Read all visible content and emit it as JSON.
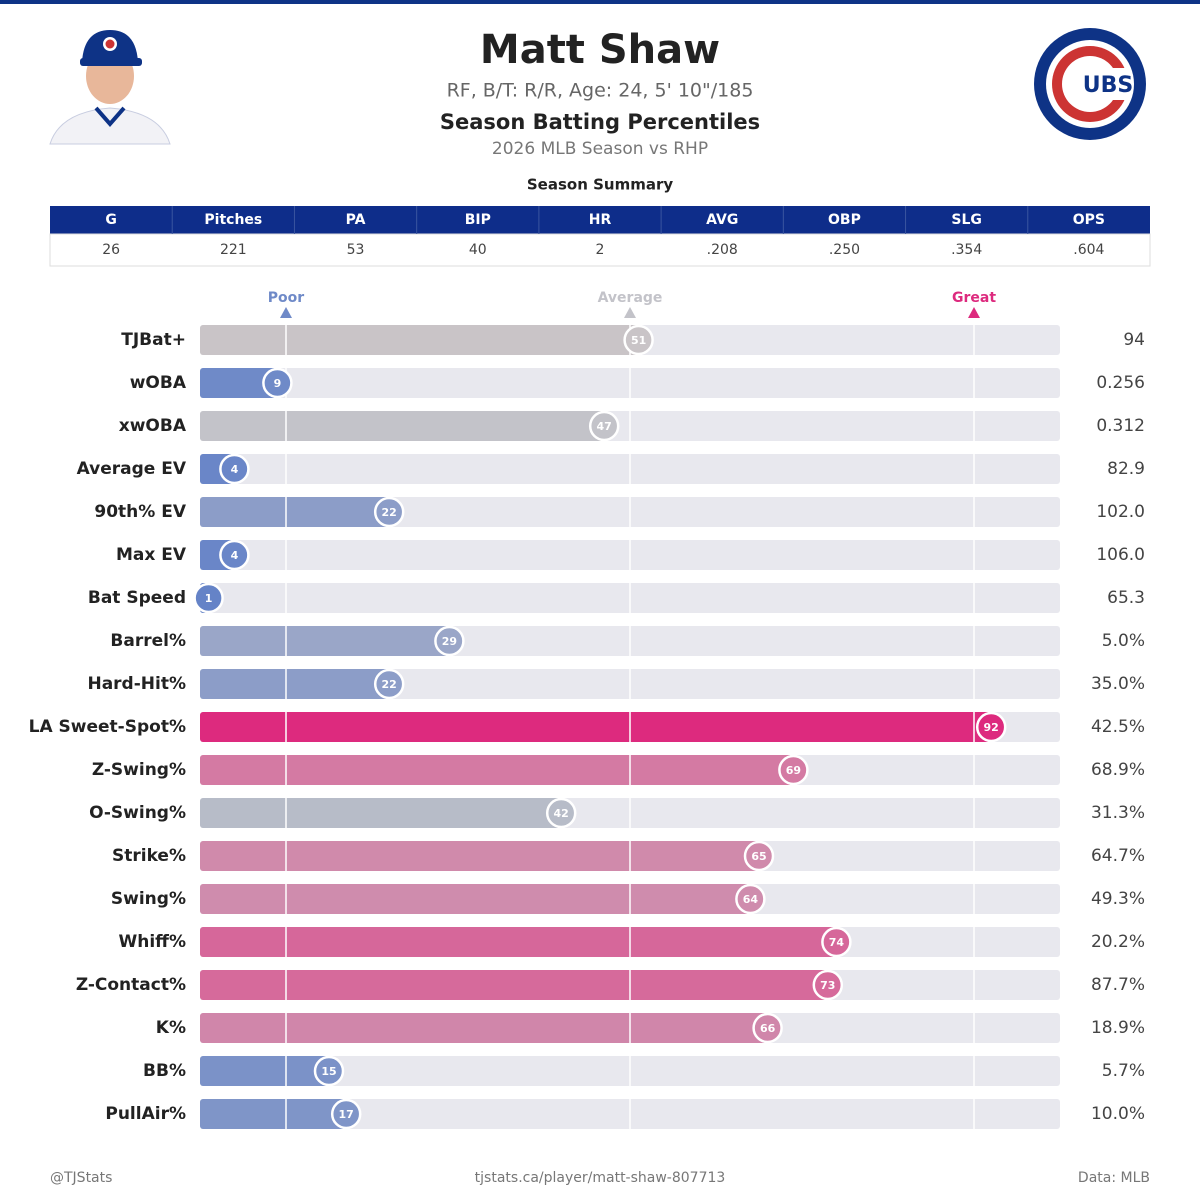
{
  "header": {
    "name": "Matt Shaw",
    "bio": "RF, B/T: R/R, Age: 24, 5' 10\"/185",
    "title": "Season Batting Percentiles",
    "subtitle": "2026 MLB Season vs RHP",
    "logo_letters": "UBS",
    "logo_c": "C"
  },
  "summary": {
    "title": "Season Summary",
    "columns": [
      "G",
      "Pitches",
      "PA",
      "BIP",
      "HR",
      "AVG",
      "OBP",
      "SLG",
      "OPS"
    ],
    "row": [
      "26",
      "221",
      "53",
      "40",
      "2",
      ".208",
      ".250",
      ".354",
      ".604"
    ]
  },
  "chart_data": {
    "type": "bar",
    "orientation": "horizontal",
    "categories": [
      "TJBat+",
      "wOBA",
      "xwOBA",
      "Average EV",
      "90th% EV",
      "Max EV",
      "Bat Speed",
      "Barrel%",
      "Hard-Hit%",
      "LA Sweet-Spot%",
      "Z-Swing%",
      "O-Swing%",
      "Strike%",
      "Swing%",
      "Whiff%",
      "Z-Contact%",
      "K%",
      "BB%",
      "PullAir%"
    ],
    "values": [
      51,
      9,
      47,
      4,
      22,
      4,
      1,
      29,
      22,
      92,
      69,
      42,
      65,
      64,
      74,
      73,
      66,
      15,
      17
    ],
    "colors": [
      "#c9c4c7",
      "#6f8ac8",
      "#c3c3c9",
      "#6a86c8",
      "#8c9dc8",
      "#6a86c8",
      "#6583c7",
      "#9aa6c8",
      "#8c9dc8",
      "#dd2a7e",
      "#d47aa3",
      "#b7bcc8",
      "#d08aab",
      "#cf8cad",
      "#d6679a",
      "#d66a9b",
      "#d086aa",
      "#7b92c8",
      "#7f95c8"
    ],
    "stats": [
      "94",
      "0.256",
      "0.312",
      "82.9",
      "102.0",
      "106.0",
      "65.3",
      "5.0%",
      "35.0%",
      "42.5%",
      "68.9%",
      "31.3%",
      "64.7%",
      "49.3%",
      "20.2%",
      "87.7%",
      "18.9%",
      "5.7%",
      "10.0%"
    ],
    "xlim": [
      0,
      100
    ],
    "xticks": [
      {
        "value": 10,
        "label": "Poor"
      },
      {
        "value": 50,
        "label": "Average"
      },
      {
        "value": 90,
        "label": "Great"
      }
    ],
    "tick_colors": [
      "#6f8ac8",
      "#c3c3c9",
      "#dd2a7e"
    ],
    "track_color": "#e8e8ee"
  },
  "footer": {
    "left": "@TJStats",
    "center": "tjstats.ca/player/matt-shaw-807713",
    "right": "Data: MLB"
  }
}
